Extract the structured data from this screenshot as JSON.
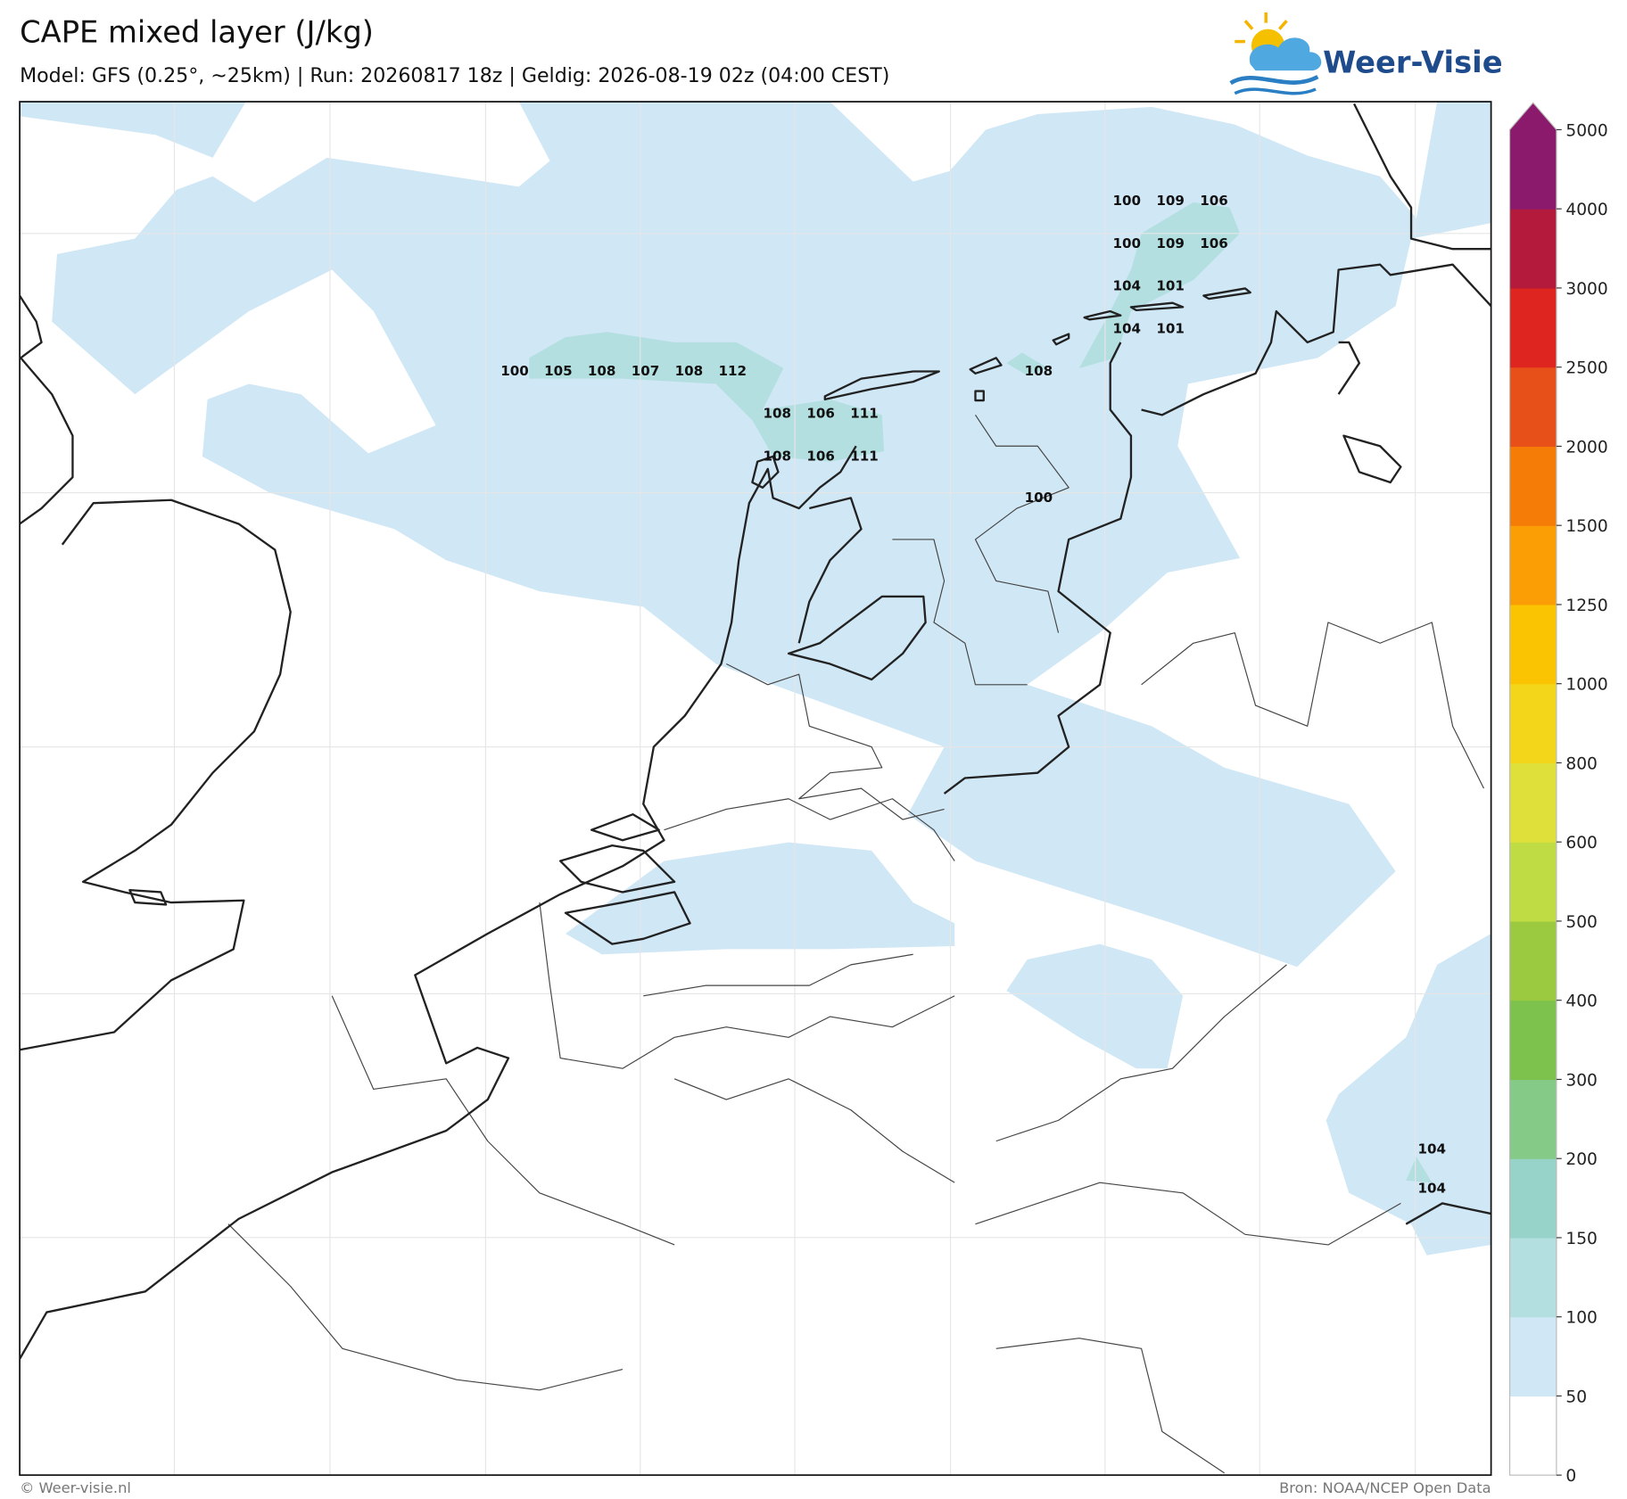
{
  "header": {
    "title": "CAPE mixed layer (J/kg)",
    "subtitle": "Model: GFS (0.25°, ~25km)  |  Run: 20260817 18z  |  Geldig: 2026-08-19 02z (04:00 CEST)",
    "logo": "Weer-Visie"
  },
  "colorbar": {
    "ticks": [
      0,
      50,
      100,
      150,
      200,
      300,
      400,
      500,
      600,
      800,
      1000,
      1250,
      1500,
      2000,
      2500,
      3000,
      4000,
      5000
    ],
    "colors": [
      "#ffffff",
      "#d0e7f5",
      "#b3dfe0",
      "#97d3c9",
      "#85cb87",
      "#7dc24c",
      "#9bc93f",
      "#c0dc44",
      "#dfe03a",
      "#f3d61a",
      "#fbc402",
      "#fb9d05",
      "#f57c06",
      "#e8501a",
      "#de2520",
      "#b31a3c",
      "#8b1a6c"
    ],
    "extend_color": "#8b1a6c"
  },
  "map": {
    "values": [
      100,
      109,
      106,
      100,
      109,
      106,
      104,
      101,
      104,
      101,
      100,
      105,
      108,
      107,
      108,
      112,
      108,
      108,
      106,
      111,
      108,
      106,
      111,
      100,
      104,
      104
    ]
  },
  "footer": {
    "left": "© Weer-visie.nl",
    "right": "Bron: NOAA/NCEP Open Data"
  }
}
